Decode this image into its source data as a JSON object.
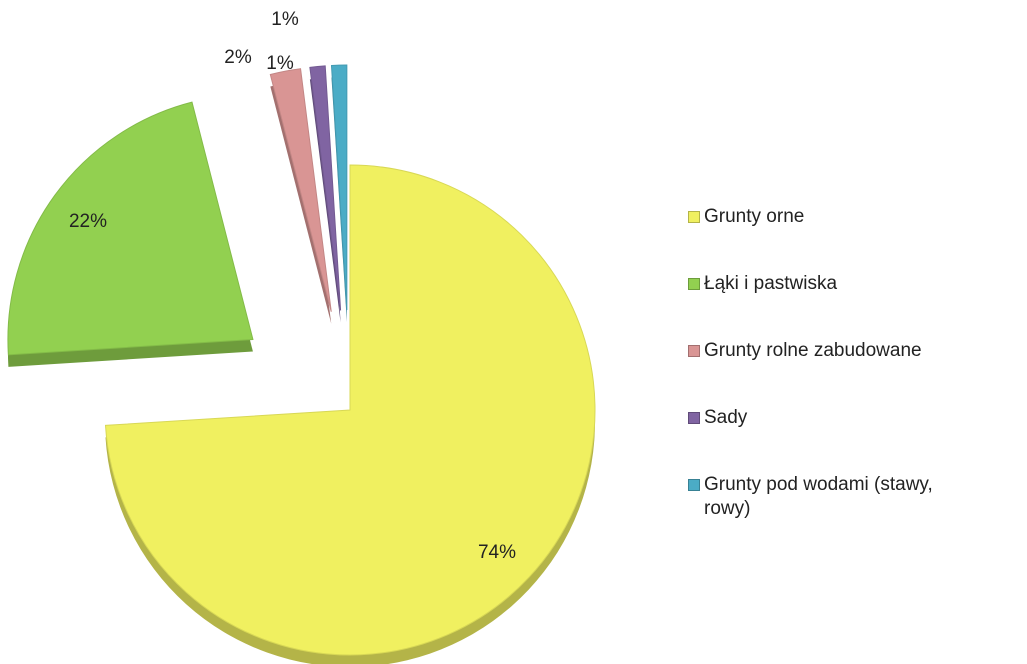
{
  "chart_data": {
    "type": "pie",
    "categories": [
      "Grunty orne",
      "Łąki i pastwiska",
      "Grunty rolne zabudowane",
      "Sady",
      "Grunty pod wodami (stawy, rowy)"
    ],
    "values": [
      74,
      22,
      2,
      1,
      1
    ],
    "value_labels": [
      "74%",
      "22%",
      "2%",
      "1%",
      "1%"
    ],
    "colors": [
      "#f0f060",
      "#92d050",
      "#d99594",
      "#8064a2",
      "#4bacc6"
    ],
    "legend": "right"
  }
}
